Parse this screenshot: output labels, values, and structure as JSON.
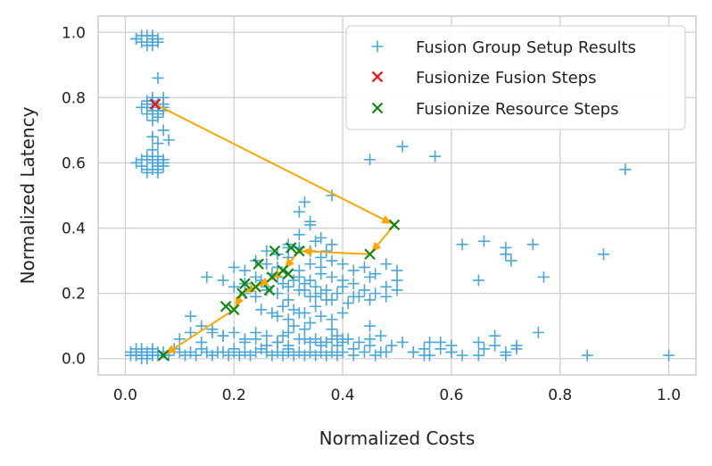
{
  "chart_data": {
    "type": "scatter",
    "xlabel": "Normalized Costs",
    "ylabel": "Normalized Latency",
    "xlim": [
      -0.05,
      1.05
    ],
    "ylim": [
      -0.05,
      1.05
    ],
    "grid": true,
    "legend_position": "top-right",
    "x_ticks": [
      "0.0",
      "0.2",
      "0.4",
      "0.6",
      "0.8",
      "1.0"
    ],
    "y_ticks": [
      "0.0",
      "0.2",
      "0.4",
      "0.6",
      "0.8",
      "1.0"
    ],
    "colors": {
      "setup": "#4aa7d9",
      "fusion": "#ee1111",
      "resource": "#118811",
      "path": "#ffa500",
      "grid": "#d0d0d0",
      "frame": "#cccccc"
    },
    "series": [
      {
        "name": "Fusion Group Setup Results",
        "marker": "plus",
        "color_key": "setup",
        "x": [
          0.01,
          0.02,
          0.03,
          0.04,
          0.05,
          0.03,
          0.02,
          0.04,
          0.05,
          0.06,
          0.02,
          0.03,
          0.04,
          0.05,
          0.01,
          0.03,
          0.06,
          0.07,
          0.08,
          0.09,
          0.1,
          0.11,
          0.12,
          0.13,
          0.14,
          0.15,
          0.16,
          0.17,
          0.18,
          0.19,
          0.2,
          0.21,
          0.22,
          0.23,
          0.24,
          0.25,
          0.26,
          0.27,
          0.28,
          0.29,
          0.3,
          0.31,
          0.32,
          0.33,
          0.34,
          0.35,
          0.36,
          0.37,
          0.38,
          0.39,
          0.4,
          0.42,
          0.44,
          0.46,
          0.48,
          0.53,
          0.56,
          0.58,
          0.6,
          0.65,
          0.7,
          0.85,
          1.0,
          0.02,
          0.03,
          0.04,
          0.05,
          0.06,
          0.04,
          0.03,
          0.05,
          0.02,
          0.04,
          0.06,
          0.05,
          0.04,
          0.05,
          0.06,
          0.07,
          0.03,
          0.05,
          0.06,
          0.04,
          0.05,
          0.06,
          0.07,
          0.04,
          0.05,
          0.06,
          0.07,
          0.06,
          0.05,
          0.07,
          0.02,
          0.03,
          0.04,
          0.05,
          0.06,
          0.07,
          0.03,
          0.04,
          0.05,
          0.06,
          0.04,
          0.05,
          0.06,
          0.07,
          0.05,
          0.06,
          0.07,
          0.04,
          0.06,
          0.05,
          0.08,
          0.06,
          0.07,
          0.05,
          0.04,
          0.06,
          0.15,
          0.18,
          0.2,
          0.22,
          0.24,
          0.25,
          0.26,
          0.27,
          0.28,
          0.29,
          0.3,
          0.31,
          0.32,
          0.33,
          0.34,
          0.35,
          0.36,
          0.37,
          0.38,
          0.4,
          0.42,
          0.45,
          0.48,
          0.5,
          0.2,
          0.22,
          0.24,
          0.26,
          0.28,
          0.3,
          0.32,
          0.34,
          0.36,
          0.38,
          0.4,
          0.42,
          0.44,
          0.46,
          0.48,
          0.5,
          0.26,
          0.28,
          0.3,
          0.32,
          0.34,
          0.36,
          0.38,
          0.22,
          0.24,
          0.26,
          0.28,
          0.3,
          0.32,
          0.34,
          0.36,
          0.38,
          0.4,
          0.42,
          0.44,
          0.46,
          0.48,
          0.5,
          0.35,
          0.33,
          0.37,
          0.39,
          0.41,
          0.43,
          0.45,
          0.25,
          0.27,
          0.29,
          0.31,
          0.33,
          0.35,
          0.28,
          0.3,
          0.32,
          0.34,
          0.36,
          0.38,
          0.4,
          0.31,
          0.3,
          0.29,
          0.33,
          0.35,
          0.37,
          0.39,
          0.41,
          0.43,
          0.45,
          0.1,
          0.12,
          0.14,
          0.16,
          0.18,
          0.2,
          0.22,
          0.24,
          0.26,
          0.28,
          0.3,
          0.32,
          0.34,
          0.36,
          0.38,
          0.4,
          0.3,
          0.35,
          0.32,
          0.37,
          0.38,
          0.36,
          0.34,
          0.51,
          0.57,
          0.45,
          0.92,
          0.62,
          0.65,
          0.66,
          0.7,
          0.7,
          0.71,
          0.75,
          0.77,
          0.76,
          0.88,
          0.65,
          0.68,
          0.72,
          0.6,
          0.56,
          0.55,
          0.45,
          0.47,
          0.38,
          0.4,
          0.33,
          0.32,
          0.34,
          0.12,
          0.14,
          0.16,
          0.18,
          0.2,
          0.22,
          0.24,
          0.26,
          0.28,
          0.3,
          0.33,
          0.36,
          0.39,
          0.42,
          0.45,
          0.47,
          0.49,
          0.51,
          0.53,
          0.55,
          0.58,
          0.6,
          0.62,
          0.66,
          0.68,
          0.7,
          0.72
        ],
        "y": [
          0.02,
          0.01,
          0.02,
          0.01,
          0.02,
          0.0,
          0.01,
          0.02,
          0.01,
          0.02,
          0.03,
          0.03,
          0.0,
          0.03,
          0.01,
          0.02,
          0.01,
          0.02,
          0.01,
          0.03,
          0.02,
          0.01,
          0.02,
          0.01,
          0.03,
          0.02,
          0.01,
          0.02,
          0.02,
          0.01,
          0.02,
          0.01,
          0.02,
          0.01,
          0.02,
          0.03,
          0.02,
          0.01,
          0.02,
          0.01,
          0.02,
          0.01,
          0.02,
          0.01,
          0.02,
          0.01,
          0.02,
          0.01,
          0.02,
          0.01,
          0.02,
          0.01,
          0.02,
          0.01,
          0.02,
          0.02,
          0.01,
          0.03,
          0.02,
          0.01,
          0.01,
          0.01,
          0.01,
          0.98,
          0.99,
          0.97,
          0.98,
          0.97,
          0.99,
          0.97,
          0.96,
          0.98,
          0.96,
          0.98,
          0.99,
          0.78,
          0.77,
          0.76,
          0.78,
          0.77,
          0.76,
          0.75,
          0.79,
          0.8,
          0.74,
          0.77,
          0.75,
          0.79,
          0.77,
          0.76,
          0.86,
          0.73,
          0.8,
          0.6,
          0.59,
          0.61,
          0.6,
          0.58,
          0.59,
          0.61,
          0.62,
          0.58,
          0.6,
          0.57,
          0.61,
          0.59,
          0.6,
          0.64,
          0.62,
          0.61,
          0.58,
          0.57,
          0.68,
          0.67,
          0.66,
          0.7,
          0.78,
          0.77,
          0.78,
          0.25,
          0.24,
          0.22,
          0.23,
          0.25,
          0.24,
          0.22,
          0.26,
          0.25,
          0.23,
          0.22,
          0.24,
          0.25,
          0.23,
          0.24,
          0.22,
          0.26,
          0.21,
          0.25,
          0.24,
          0.23,
          0.25,
          0.22,
          0.24,
          0.28,
          0.27,
          0.3,
          0.29,
          0.28,
          0.31,
          0.27,
          0.29,
          0.28,
          0.3,
          0.29,
          0.27,
          0.28,
          0.26,
          0.29,
          0.27,
          0.33,
          0.32,
          0.35,
          0.34,
          0.33,
          0.37,
          0.35,
          0.2,
          0.19,
          0.21,
          0.2,
          0.18,
          0.21,
          0.19,
          0.2,
          0.18,
          0.22,
          0.19,
          0.21,
          0.2,
          0.19,
          0.21,
          0.19,
          0.21,
          0.18,
          0.2,
          0.17,
          0.19,
          0.18,
          0.15,
          0.14,
          0.16,
          0.15,
          0.14,
          0.16,
          0.13,
          0.12,
          0.14,
          0.11,
          0.13,
          0.12,
          0.14,
          0.1,
          0.08,
          0.07,
          0.09,
          0.06,
          0.05,
          0.07,
          0.06,
          0.05,
          0.04,
          0.06,
          0.08,
          0.1,
          0.09,
          0.07,
          0.08,
          0.05,
          0.06,
          0.07,
          0.05,
          0.04,
          0.06,
          0.05,
          0.04,
          0.06,
          0.05,
          0.34,
          0.36,
          0.38,
          0.33,
          0.5,
          0.31,
          0.42,
          0.65,
          0.62,
          0.61,
          0.58,
          0.35,
          0.24,
          0.36,
          0.34,
          0.32,
          0.3,
          0.35,
          0.25,
          0.08,
          0.32,
          0.05,
          0.07,
          0.04,
          0.04,
          0.05,
          0.01,
          0.1,
          0.07,
          0.09,
          0.06,
          0.48,
          0.45,
          0.41,
          0.13,
          0.05,
          0.08,
          0.07,
          0.03,
          0.06,
          0.08,
          0.04,
          0.05,
          0.03,
          0.06,
          0.05,
          0.04,
          0.03,
          0.06,
          0.02,
          0.04,
          0.05,
          0.02,
          0.03,
          0.05,
          0.02,
          0.01,
          0.03,
          0.04,
          0.02,
          0.03
        ]
      },
      {
        "name": "Fusionize Fusion Steps",
        "marker": "x",
        "color_key": "fusion",
        "x": [
          0.055
        ],
        "y": [
          0.78
        ]
      },
      {
        "name": "Fusionize Resource Steps",
        "marker": "x",
        "color_key": "resource",
        "x": [
          0.495,
          0.45,
          0.32,
          0.305,
          0.275,
          0.29,
          0.27,
          0.265,
          0.3,
          0.245,
          0.24,
          0.22,
          0.215,
          0.2,
          0.185,
          0.07
        ],
        "y": [
          0.41,
          0.32,
          0.33,
          0.34,
          0.33,
          0.27,
          0.25,
          0.21,
          0.26,
          0.29,
          0.22,
          0.23,
          0.2,
          0.15,
          0.16,
          0.01
        ]
      }
    ],
    "path": {
      "name": "optimization-path",
      "x": [
        0.055,
        0.495,
        0.45,
        0.32,
        0.29,
        0.265,
        0.24,
        0.215,
        0.2,
        0.07
      ],
      "y": [
        0.78,
        0.41,
        0.32,
        0.33,
        0.27,
        0.24,
        0.22,
        0.2,
        0.15,
        0.01
      ]
    }
  }
}
